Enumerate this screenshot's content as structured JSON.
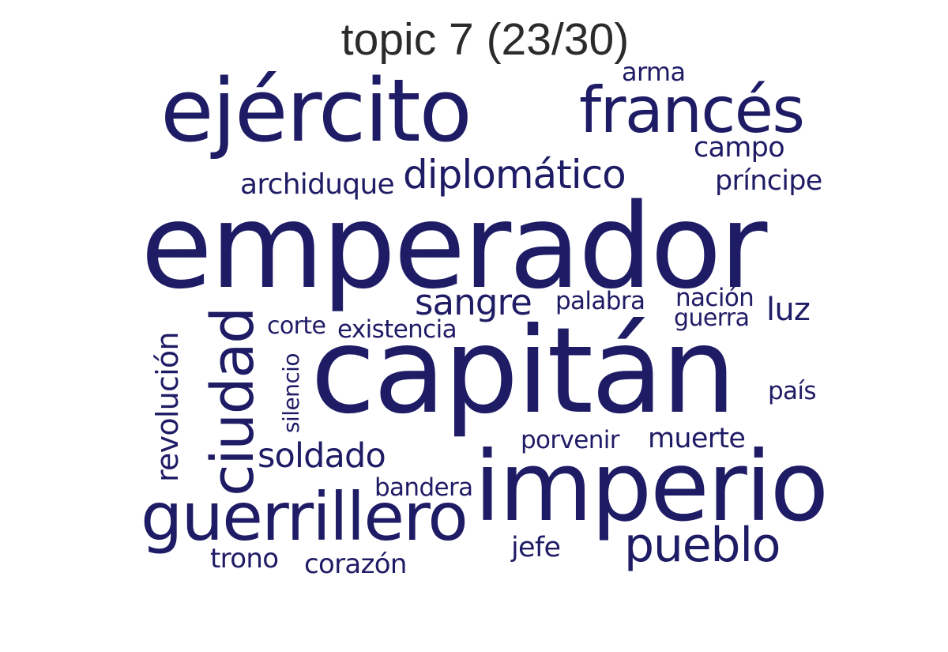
{
  "title": "topic 7 (23/30)",
  "color": "#1f1c66",
  "words": {
    "emperador": "emperador",
    "capitan": "capitán",
    "imperio": "imperio",
    "ejercito": "ejército",
    "frances": "francés",
    "guerrillero": "guerrillero",
    "ciudad": "ciudad",
    "pueblo": "pueblo",
    "diplomatico": "diplomático",
    "soldado": "soldado",
    "sangre": "sangre",
    "revolucion": "revolución",
    "archiduque": "archiduque",
    "principe": "príncipe",
    "campo": "campo",
    "arma": "arma",
    "luz": "luz",
    "palabra": "palabra",
    "nacion": "nación",
    "guerra": "guerra",
    "corte": "corte",
    "existencia": "existencia",
    "silencio": "silencio",
    "pais": "país",
    "porvenir": "porvenir",
    "muerte": "muerte",
    "bandera": "bandera",
    "jefe": "jefe",
    "trono": "trono",
    "corazon": "corazón"
  }
}
